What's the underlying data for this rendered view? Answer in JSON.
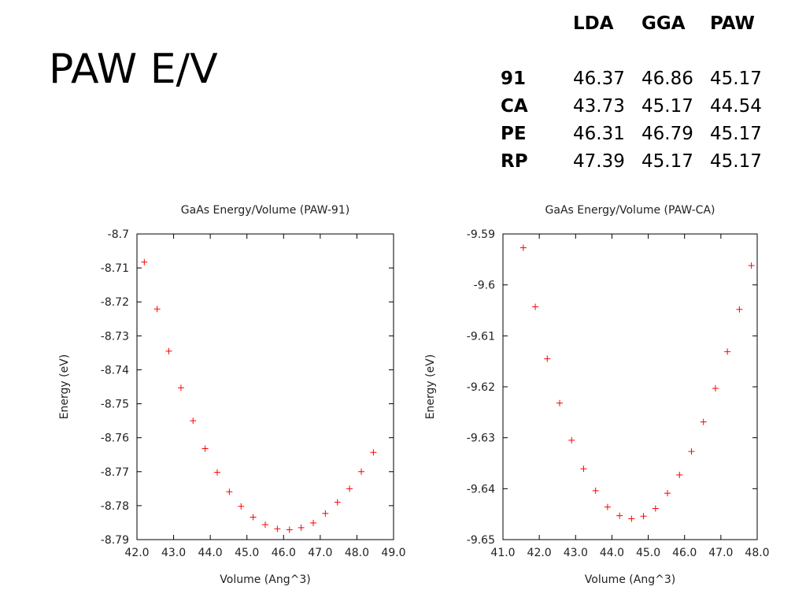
{
  "slide": {
    "title": "PAW E/V"
  },
  "summary_table": {
    "columns": [
      "LDA",
      "GGA",
      "PAW"
    ],
    "rows": [
      {
        "label": "91",
        "values": [
          "46.37",
          "46.86",
          "45.17"
        ]
      },
      {
        "label": "CA",
        "values": [
          "43.73",
          "45.17",
          "44.54"
        ]
      },
      {
        "label": "PE",
        "values": [
          "46.31",
          "46.79",
          "45.17"
        ]
      },
      {
        "label": "RP",
        "values": [
          "47.39",
          "45.17",
          "45.17"
        ]
      }
    ]
  },
  "chart_data": [
    {
      "type": "scatter",
      "title": "GaAs Energy/Volume (PAW-91)",
      "xlabel": "Volume (Ang^3)",
      "ylabel": "Energy (eV)",
      "xlim": [
        42.0,
        49.0
      ],
      "ylim": [
        -8.79,
        -8.7
      ],
      "xticks": [
        42.0,
        43.0,
        44.0,
        45.0,
        46.0,
        47.0,
        48.0,
        49.0
      ],
      "xtick_labels": [
        "42.0",
        "43.0",
        "44.0",
        "45.0",
        "46.0",
        "47.0",
        "48.0",
        "49.0"
      ],
      "yticks": [
        -8.7,
        -8.71,
        -8.72,
        -8.73,
        -8.74,
        -8.75,
        -8.76,
        -8.77,
        -8.78,
        -8.79
      ],
      "ytick_labels": [
        "-8.7",
        "-8.71",
        "-8.72",
        "-8.73",
        "-8.74",
        "-8.75",
        "-8.76",
        "-8.77",
        "-8.78",
        "-8.79"
      ],
      "grid": false,
      "marker_color": "#ff0000",
      "series": [
        {
          "x": [
            42.2,
            42.55,
            42.87,
            43.2,
            43.53,
            43.86,
            44.19,
            44.52,
            44.84,
            45.17,
            45.5,
            45.83,
            46.16,
            46.48,
            46.81,
            47.14,
            47.47,
            47.8,
            48.12,
            48.45
          ],
          "y": [
            -8.7083,
            -8.7221,
            -8.7345,
            -8.7453,
            -8.755,
            -8.7632,
            -8.7702,
            -8.7759,
            -8.7802,
            -8.7834,
            -8.7856,
            -8.7868,
            -8.7871,
            -8.7865,
            -8.7851,
            -8.7823,
            -8.779,
            -8.775,
            -8.77,
            -8.7643
          ]
        }
      ]
    },
    {
      "type": "scatter",
      "title": "GaAs Energy/Volume (PAW-CA)",
      "xlabel": "Volume (Ang^3)",
      "ylabel": "Energy (eV)",
      "xlim": [
        41.0,
        48.0
      ],
      "ylim": [
        -9.65,
        -9.59
      ],
      "xticks": [
        41.0,
        42.0,
        43.0,
        44.0,
        45.0,
        46.0,
        47.0,
        48.0
      ],
      "xtick_labels": [
        "41.0",
        "42.0",
        "43.0",
        "44.0",
        "45.0",
        "46.0",
        "47.0",
        "48.0"
      ],
      "yticks": [
        -9.59,
        -9.6,
        -9.61,
        -9.62,
        -9.63,
        -9.64,
        -9.65
      ],
      "ytick_labels": [
        "-9.59",
        "-9.6",
        "-9.61",
        "-9.62",
        "-9.63",
        "-9.64",
        "-9.65"
      ],
      "grid": false,
      "marker_color": "#ff0000",
      "series": [
        {
          "x": [
            41.56,
            41.89,
            42.22,
            42.56,
            42.89,
            43.22,
            43.55,
            43.88,
            44.21,
            44.54,
            44.87,
            45.2,
            45.53,
            45.86,
            46.19,
            46.52,
            46.85,
            47.18,
            47.51,
            47.84
          ],
          "y": [
            -9.5927,
            -9.6043,
            -9.6145,
            -9.6232,
            -9.6305,
            -9.6361,
            -9.6404,
            -9.6436,
            -9.6453,
            -9.6459,
            -9.6454,
            -9.6439,
            -9.6409,
            -9.6373,
            -9.6327,
            -9.6269,
            -9.6203,
            -9.6131,
            -9.6048,
            -9.5962
          ]
        }
      ]
    }
  ]
}
